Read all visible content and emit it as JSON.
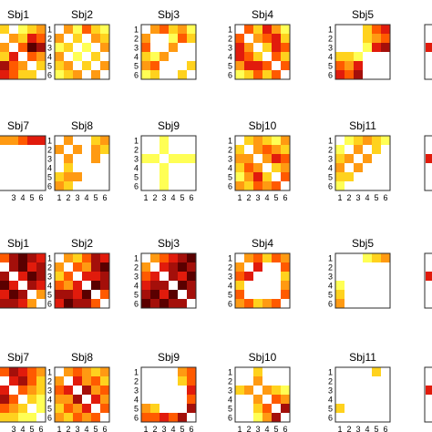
{
  "colors": {
    "frame": "#2b2b2b",
    "background": "#ffffff"
  },
  "colormap": [
    "#ffffff",
    "#ffff55",
    "#ffd21e",
    "#ff9a12",
    "#ff5a00",
    "#e11b0c",
    "#a40f0a",
    "#5a0000"
  ],
  "chart_data": {
    "type": "heatmap",
    "tick_labels": [
      "1",
      "2",
      "3",
      "4",
      "5",
      "6"
    ],
    "panels": [
      {
        "title": "Sbj1",
        "grid": [
          [
            3,
            2,
            0,
            1,
            2,
            3
          ],
          [
            2,
            0,
            3,
            2,
            5,
            4
          ],
          [
            1,
            3,
            0,
            4,
            7,
            6
          ],
          [
            3,
            2,
            5,
            0,
            4,
            3
          ],
          [
            4,
            6,
            4,
            3,
            0,
            2
          ],
          [
            6,
            5,
            4,
            2,
            2,
            0
          ]
        ]
      },
      {
        "title": "Sbj2",
        "grid": [
          [
            0,
            3,
            1,
            4,
            2,
            1
          ],
          [
            3,
            0,
            2,
            0,
            3,
            2
          ],
          [
            1,
            2,
            0,
            1,
            0,
            3
          ],
          [
            3,
            0,
            1,
            0,
            2,
            0
          ],
          [
            2,
            3,
            0,
            2,
            0,
            3
          ],
          [
            1,
            2,
            3,
            0,
            3,
            0
          ]
        ]
      },
      {
        "title": "Sbj3",
        "grid": [
          [
            0,
            3,
            4,
            2,
            3,
            1
          ],
          [
            3,
            0,
            0,
            1,
            4,
            2
          ],
          [
            4,
            0,
            0,
            3,
            0,
            0
          ],
          [
            2,
            1,
            3,
            0,
            0,
            0
          ],
          [
            3,
            4,
            0,
            0,
            0,
            2
          ],
          [
            1,
            2,
            0,
            0,
            2,
            0
          ]
        ]
      },
      {
        "title": "Sbj4",
        "grid": [
          [
            0,
            4,
            2,
            5,
            3,
            1
          ],
          [
            4,
            0,
            3,
            4,
            5,
            2
          ],
          [
            5,
            3,
            0,
            2,
            5,
            4
          ],
          [
            5,
            4,
            2,
            0,
            4,
            2
          ],
          [
            3,
            5,
            5,
            4,
            0,
            4
          ],
          [
            1,
            2,
            4,
            2,
            4,
            0
          ]
        ]
      },
      {
        "title": "Sbj5",
        "grid": [
          [
            0,
            0,
            0,
            2,
            4,
            5
          ],
          [
            0,
            0,
            0,
            2,
            3,
            4
          ],
          [
            0,
            0,
            0,
            1,
            5,
            6
          ],
          [
            2,
            2,
            1,
            0,
            0,
            0
          ],
          [
            4,
            3,
            5,
            0,
            0,
            0
          ],
          [
            5,
            4,
            6,
            0,
            0,
            0
          ]
        ]
      },
      {
        "title": "Sbj7",
        "grid": [
          [
            4,
            3,
            3,
            4,
            5,
            5
          ],
          [
            3,
            0,
            0,
            0,
            0,
            0
          ],
          [
            3,
            0,
            0,
            0,
            0,
            0
          ],
          [
            4,
            0,
            0,
            0,
            0,
            0
          ],
          [
            5,
            0,
            0,
            0,
            0,
            0
          ],
          [
            5,
            0,
            0,
            0,
            0,
            0
          ]
        ]
      },
      {
        "title": "Sbj8",
        "grid": [
          [
            0,
            3,
            0,
            0,
            2,
            3
          ],
          [
            3,
            0,
            3,
            0,
            3,
            2
          ],
          [
            0,
            3,
            0,
            0,
            3,
            0
          ],
          [
            0,
            2,
            0,
            0,
            0,
            0
          ],
          [
            2,
            3,
            3,
            0,
            0,
            0
          ],
          [
            3,
            2,
            0,
            0,
            0,
            0
          ]
        ]
      },
      {
        "title": "Sbj9",
        "grid": [
          [
            0,
            0,
            1,
            0,
            0,
            0
          ],
          [
            0,
            0,
            1,
            0,
            0,
            0
          ],
          [
            1,
            1,
            0,
            1,
            1,
            1
          ],
          [
            0,
            0,
            1,
            0,
            0,
            0
          ],
          [
            0,
            0,
            1,
            0,
            0,
            0
          ],
          [
            0,
            0,
            1,
            0,
            0,
            0
          ]
        ]
      },
      {
        "title": "Sbj10",
        "grid": [
          [
            0,
            2,
            3,
            2,
            1,
            3
          ],
          [
            2,
            0,
            3,
            4,
            3,
            2
          ],
          [
            3,
            3,
            0,
            3,
            5,
            4
          ],
          [
            2,
            4,
            3,
            0,
            2,
            3
          ],
          [
            1,
            3,
            5,
            2,
            0,
            4
          ],
          [
            3,
            2,
            4,
            3,
            4,
            0
          ]
        ]
      },
      {
        "title": "Sbj11",
        "grid": [
          [
            0,
            1,
            2,
            3,
            2,
            1
          ],
          [
            1,
            0,
            3,
            0,
            2,
            0
          ],
          [
            2,
            3,
            0,
            3,
            0,
            0
          ],
          [
            3,
            0,
            3,
            0,
            0,
            0
          ],
          [
            2,
            2,
            0,
            0,
            0,
            0
          ],
          [
            1,
            0,
            0,
            0,
            0,
            0
          ]
        ]
      },
      {
        "title": "Sbj1",
        "grid": [
          [
            0,
            4,
            6,
            7,
            6,
            5
          ],
          [
            4,
            0,
            6,
            7,
            5,
            6
          ],
          [
            6,
            6,
            0,
            5,
            7,
            6
          ],
          [
            7,
            7,
            5,
            0,
            6,
            5
          ],
          [
            6,
            5,
            7,
            6,
            0,
            3
          ],
          [
            5,
            6,
            6,
            5,
            3,
            0
          ]
        ]
      },
      {
        "title": "Sbj2",
        "grid": [
          [
            0,
            3,
            2,
            4,
            6,
            5
          ],
          [
            3,
            0,
            4,
            3,
            6,
            7
          ],
          [
            2,
            4,
            0,
            5,
            5,
            6
          ],
          [
            4,
            3,
            5,
            0,
            7,
            6
          ],
          [
            6,
            6,
            5,
            7,
            0,
            4
          ],
          [
            5,
            7,
            6,
            6,
            4,
            0
          ]
        ]
      },
      {
        "title": "Sbj3",
        "grid": [
          [
            0,
            3,
            4,
            5,
            6,
            7
          ],
          [
            3,
            0,
            5,
            6,
            7,
            6
          ],
          [
            4,
            5,
            0,
            6,
            5,
            7
          ],
          [
            5,
            6,
            6,
            0,
            7,
            6
          ],
          [
            6,
            7,
            5,
            7,
            0,
            6
          ],
          [
            7,
            6,
            7,
            6,
            6,
            0
          ]
        ]
      },
      {
        "title": "Sbj4",
        "grid": [
          [
            0,
            3,
            4,
            2,
            4,
            3
          ],
          [
            3,
            0,
            5,
            0,
            0,
            4
          ],
          [
            4,
            5,
            0,
            0,
            0,
            2
          ],
          [
            2,
            0,
            0,
            0,
            0,
            3
          ],
          [
            4,
            0,
            0,
            0,
            0,
            4
          ],
          [
            3,
            4,
            2,
            3,
            4,
            0
          ]
        ]
      },
      {
        "title": "Sbj5",
        "grid": [
          [
            0,
            0,
            0,
            1,
            2,
            3
          ],
          [
            0,
            0,
            0,
            0,
            0,
            0
          ],
          [
            0,
            0,
            0,
            0,
            0,
            0
          ],
          [
            1,
            0,
            0,
            0,
            0,
            0
          ],
          [
            2,
            0,
            0,
            0,
            0,
            0
          ],
          [
            3,
            0,
            0,
            0,
            0,
            0
          ]
        ]
      },
      {
        "title": "Sbj7",
        "grid": [
          [
            3,
            4,
            6,
            5,
            4,
            3
          ],
          [
            4,
            0,
            5,
            6,
            4,
            2
          ],
          [
            6,
            5,
            0,
            4,
            3,
            2
          ],
          [
            5,
            6,
            4,
            0,
            2,
            1
          ],
          [
            4,
            4,
            3,
            2,
            0,
            1
          ],
          [
            3,
            2,
            2,
            1,
            1,
            0
          ]
        ]
      },
      {
        "title": "Sbj8",
        "grid": [
          [
            0,
            3,
            4,
            3,
            2,
            3
          ],
          [
            3,
            0,
            5,
            3,
            4,
            2
          ],
          [
            4,
            5,
            0,
            6,
            3,
            4
          ],
          [
            3,
            3,
            6,
            0,
            5,
            3
          ],
          [
            2,
            4,
            3,
            5,
            0,
            4
          ],
          [
            3,
            2,
            4,
            3,
            4,
            0
          ]
        ]
      },
      {
        "title": "Sbj9",
        "grid": [
          [
            0,
            0,
            0,
            0,
            3,
            4
          ],
          [
            0,
            0,
            0,
            0,
            2,
            4
          ],
          [
            0,
            0,
            0,
            0,
            0,
            5
          ],
          [
            0,
            0,
            0,
            0,
            0,
            4
          ],
          [
            3,
            2,
            0,
            0,
            0,
            6
          ],
          [
            4,
            4,
            5,
            4,
            6,
            0
          ]
        ]
      },
      {
        "title": "Sbj10",
        "grid": [
          [
            0,
            0,
            2,
            0,
            0,
            0
          ],
          [
            0,
            0,
            3,
            0,
            0,
            0
          ],
          [
            2,
            3,
            0,
            3,
            2,
            1
          ],
          [
            0,
            0,
            3,
            0,
            4,
            3
          ],
          [
            0,
            0,
            2,
            4,
            0,
            6
          ],
          [
            0,
            0,
            1,
            3,
            6,
            0
          ]
        ]
      },
      {
        "title": "Sbj11",
        "grid": [
          [
            0,
            0,
            0,
            0,
            2,
            0
          ],
          [
            0,
            0,
            0,
            0,
            0,
            0
          ],
          [
            0,
            0,
            0,
            0,
            0,
            0
          ],
          [
            0,
            0,
            0,
            0,
            0,
            0
          ],
          [
            2,
            0,
            0,
            0,
            0,
            0
          ],
          [
            0,
            0,
            0,
            0,
            0,
            0
          ]
        ]
      }
    ]
  }
}
